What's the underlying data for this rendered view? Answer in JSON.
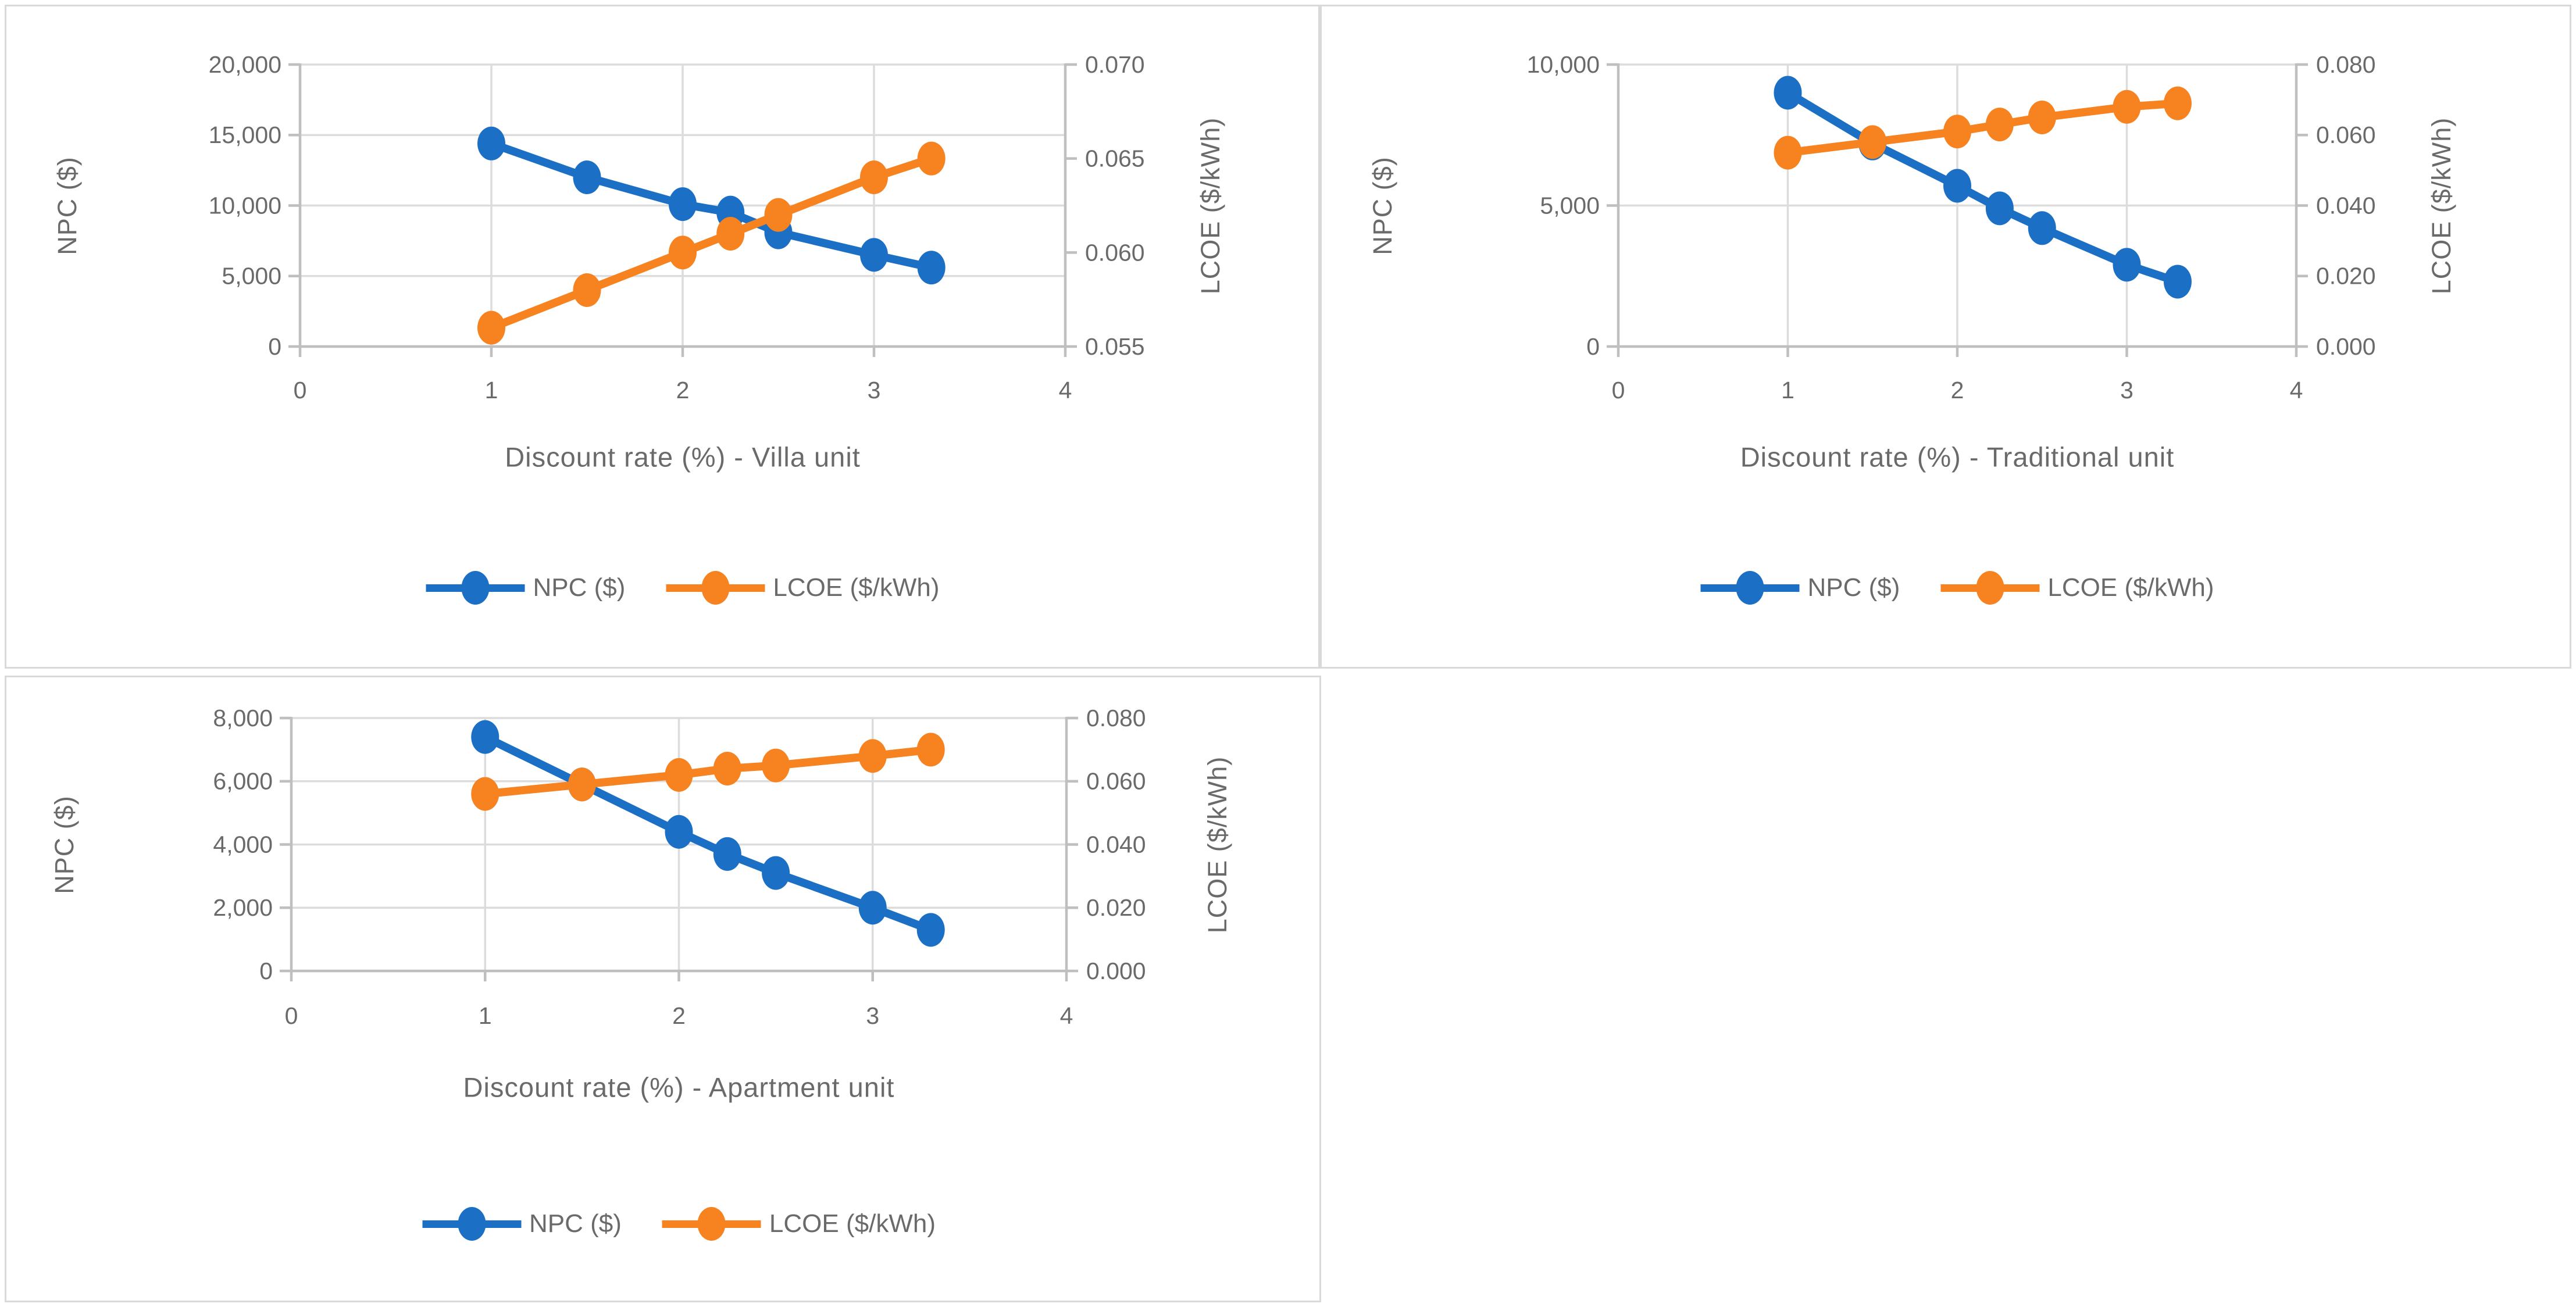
{
  "figure": {
    "description_note": "Three dual-axis sensitivity line charts: NPC and LCOE vs discount rate for Villa, Traditional and Apartment units",
    "background": "#ffffff"
  },
  "colors": {
    "npc": "#1b6fc4",
    "lcoe": "#f68220",
    "gridline": "#dcdcdc",
    "axis_line": "#bfbfbf",
    "text": "#6a6a6a",
    "panel_border": "#d9d9d9"
  },
  "legend": {
    "npc_label": "NPC ($)",
    "lcoe_label": "LCOE ($/kWh)"
  },
  "chart_data": [
    {
      "type": "line",
      "title": "Discount rate (%) - Villa unit",
      "xlabel": "Discount rate (%) - Villa unit",
      "x": [
        1,
        1.5,
        2,
        2.25,
        2.5,
        3,
        3.3
      ],
      "series": [
        {
          "name": "NPC ($)",
          "axis": "left",
          "values": [
            14400,
            12000,
            10100,
            9500,
            8100,
            6500,
            5600
          ]
        },
        {
          "name": "LCOE ($/kWh)",
          "axis": "right",
          "values": [
            0.056,
            0.058,
            0.06,
            0.061,
            0.062,
            0.064,
            0.065
          ]
        }
      ],
      "x_axis": {
        "min": 0,
        "max": 4,
        "tick_values": [
          0,
          1,
          2,
          3,
          4
        ],
        "tick_labels": [
          "0",
          "1",
          "2",
          "3",
          "4"
        ]
      },
      "left_axis": {
        "title": "NPC ($)",
        "min": 0,
        "max": 20000,
        "tick_values": [
          0,
          5000,
          10000,
          15000,
          20000
        ],
        "tick_labels": [
          "0",
          "5,000",
          "10,000",
          "15,000",
          "20,000"
        ]
      },
      "right_axis": {
        "title": "LCOE ($/kWh)",
        "min": 0.055,
        "max": 0.07,
        "tick_values": [
          0.055,
          0.06,
          0.065,
          0.07
        ],
        "tick_labels": [
          "0.055",
          "0.060",
          "0.065",
          "0.070"
        ]
      },
      "grid": true,
      "legend_position": "bottom"
    },
    {
      "type": "line",
      "title": "Discount rate (%) - Traditional unit",
      "xlabel": "Discount rate (%) - Traditional unit",
      "x": [
        1,
        1.5,
        2,
        2.25,
        2.5,
        3,
        3.3
      ],
      "series": [
        {
          "name": "NPC ($)",
          "axis": "left",
          "values": [
            9000,
            7200,
            5700,
            4900,
            4200,
            2900,
            2300
          ]
        },
        {
          "name": "LCOE ($/kWh)",
          "axis": "right",
          "values": [
            0.055,
            0.058,
            0.061,
            0.063,
            0.065,
            0.068,
            0.069
          ]
        }
      ],
      "x_axis": {
        "min": 0,
        "max": 4,
        "tick_values": [
          0,
          1,
          2,
          3,
          4
        ],
        "tick_labels": [
          "0",
          "1",
          "2",
          "3",
          "4"
        ]
      },
      "left_axis": {
        "title": "NPC ($)",
        "min": 0,
        "max": 10000,
        "tick_values": [
          0,
          5000,
          10000
        ],
        "tick_labels": [
          "0",
          "5,000",
          "10,000"
        ]
      },
      "right_axis": {
        "title": "LCOE ($/kWh)",
        "min": 0,
        "max": 0.08,
        "tick_values": [
          0,
          0.02,
          0.04,
          0.06,
          0.08
        ],
        "tick_labels": [
          "0.000",
          "0.020",
          "0.040",
          "0.060",
          "0.080"
        ]
      },
      "grid": true,
      "legend_position": "bottom"
    },
    {
      "type": "line",
      "title": "Discount rate (%) - Apartment unit",
      "xlabel": "Discount rate (%) - Apartment unit",
      "x": [
        1,
        1.5,
        2,
        2.25,
        2.5,
        3,
        3.3
      ],
      "series": [
        {
          "name": "NPC ($)",
          "axis": "left",
          "values": [
            7400,
            5900,
            4400,
            3700,
            3100,
            2000,
            1300
          ]
        },
        {
          "name": "LCOE ($/kWh)",
          "axis": "right",
          "values": [
            0.056,
            0.059,
            0.062,
            0.064,
            0.065,
            0.068,
            0.07
          ]
        }
      ],
      "x_axis": {
        "min": 0,
        "max": 4,
        "tick_values": [
          0,
          1,
          2,
          3,
          4
        ],
        "tick_labels": [
          "0",
          "1",
          "2",
          "3",
          "4"
        ]
      },
      "left_axis": {
        "title": "NPC ($)",
        "min": 0,
        "max": 8000,
        "tick_values": [
          0,
          2000,
          4000,
          6000,
          8000
        ],
        "tick_labels": [
          "0",
          "2,000",
          "4,000",
          "6,000",
          "8,000"
        ]
      },
      "right_axis": {
        "title": "LCOE ($/kWh)",
        "min": 0,
        "max": 0.08,
        "tick_values": [
          0,
          0.02,
          0.04,
          0.06,
          0.08
        ],
        "tick_labels": [
          "0.000",
          "0.020",
          "0.040",
          "0.060",
          "0.080"
        ]
      },
      "grid": true,
      "legend_position": "bottom"
    }
  ]
}
